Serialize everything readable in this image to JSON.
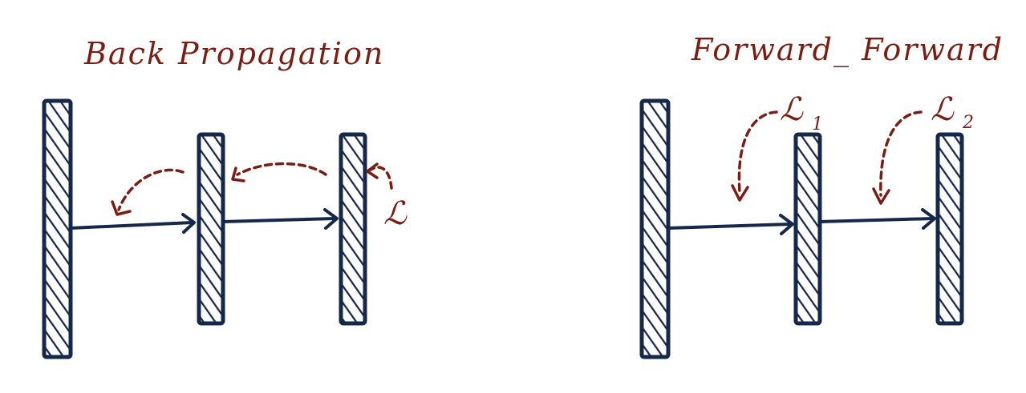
{
  "colors": {
    "layer": "#16284a",
    "annotation": "#7a1e14",
    "background": "#ffffff"
  },
  "backprop": {
    "title": "Back Propagation",
    "loss": "ℒ"
  },
  "forward_forward": {
    "title": "Forward_ Forward",
    "loss1": "ℒ",
    "loss1_sub": "1",
    "loss2": "ℒ",
    "loss2_sub": "2"
  }
}
